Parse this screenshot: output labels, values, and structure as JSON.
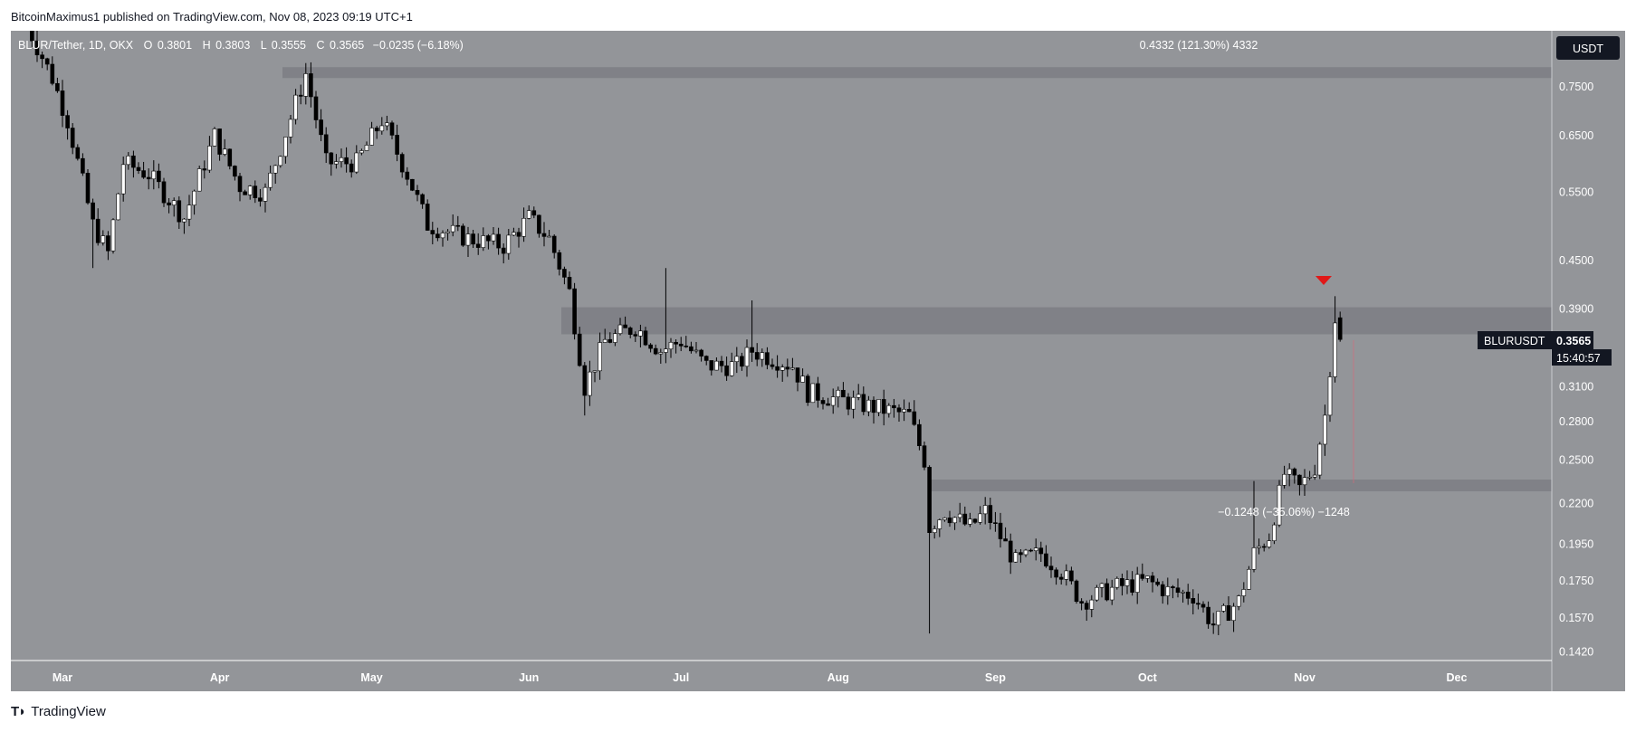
{
  "header": {
    "publish_text": "BitcoinMaximus1 published on TradingView.com, Nov 08, 2023 09:19 UTC+1"
  },
  "legend": {
    "symbol": "BLUR/Tether, 1D, OKX",
    "o_label": "O",
    "o_value": "0.3801",
    "h_label": "H",
    "h_value": "0.3803",
    "l_label": "L",
    "l_value": "0.3555",
    "c_label": "C",
    "c_value": "0.3565",
    "change": "−0.0235 (−6.18%)"
  },
  "currency_label": "USDT",
  "price_tag": {
    "symbol": "BLURUSDT",
    "price": "0.3565",
    "countdown": "15:40:57"
  },
  "measure_up": "0.4332 (121.30%) 4332",
  "measure_down": "−0.1248 (−35.06%) −1248",
  "footer": {
    "brand": "TradingView"
  },
  "colors": {
    "plot_bg": "#939599",
    "zone": "#7c7e84",
    "candle_up": "#ffffff",
    "candle_down": "#000000",
    "arrow": "#e01818",
    "price_tag_bg": "#131722",
    "currency_bg": "#131722"
  },
  "chart_data": {
    "type": "candlestick",
    "scale": "log",
    "y_ticks": [
      0.75,
      0.65,
      0.55,
      0.45,
      0.39,
      0.31,
      0.28,
      0.25,
      0.22,
      0.195,
      0.175,
      0.157,
      0.142
    ],
    "y_tick_labels": [
      "0.7500",
      "0.6500",
      "0.5500",
      "0.4500",
      "0.3900",
      "0.3100",
      "0.2800",
      "0.2500",
      "0.2200",
      "0.1950",
      "0.1750",
      "0.1570",
      "0.1420"
    ],
    "x_ticks": [
      "Mar",
      "Apr",
      "May",
      "Jun",
      "Jul",
      "Aug",
      "Sep",
      "Oct",
      "Nov",
      "Dec"
    ],
    "zones": [
      {
        "low": 0.77,
        "high": 0.795
      },
      {
        "low": 0.362,
        "high": 0.392
      },
      {
        "low": 0.228,
        "high": 0.236
      }
    ],
    "anchors": [
      {
        "x": "Feb 22",
        "y": 0.9
      },
      {
        "x": "Feb 27",
        "y": 0.77
      },
      {
        "x": "Mar 02",
        "y": 0.68
      },
      {
        "x": "Mar 07",
        "y": 0.5
      },
      {
        "x": "Mar 10",
        "y": 0.46
      },
      {
        "x": "Mar 13",
        "y": 0.6
      },
      {
        "x": "Mar 18",
        "y": 0.58
      },
      {
        "x": "Mar 25",
        "y": 0.51
      },
      {
        "x": "Mar 31",
        "y": 0.65
      },
      {
        "x": "Apr 05",
        "y": 0.56
      },
      {
        "x": "Apr 10",
        "y": 0.55
      },
      {
        "x": "Apr 18",
        "y": 0.78
      },
      {
        "x": "Apr 22",
        "y": 0.6
      },
      {
        "x": "Apr 28",
        "y": 0.6
      },
      {
        "x": "May 03",
        "y": 0.68
      },
      {
        "x": "May 08",
        "y": 0.58
      },
      {
        "x": "May 12",
        "y": 0.5
      },
      {
        "x": "May 20",
        "y": 0.48
      },
      {
        "x": "May 27",
        "y": 0.47
      },
      {
        "x": "Jun 01",
        "y": 0.51
      },
      {
        "x": "Jun 05",
        "y": 0.48
      },
      {
        "x": "Jun 09",
        "y": 0.41
      },
      {
        "x": "Jun 12",
        "y": 0.31
      },
      {
        "x": "Jun 16",
        "y": 0.355
      },
      {
        "x": "Jun 22",
        "y": 0.37
      },
      {
        "x": "Jun 27",
        "y": 0.345
      },
      {
        "x": "Jul 01",
        "y": 0.355
      },
      {
        "x": "Jul 06",
        "y": 0.33
      },
      {
        "x": "Jul 12",
        "y": 0.33
      },
      {
        "x": "Jul 15",
        "y": 0.345
      },
      {
        "x": "Jul 23",
        "y": 0.33
      },
      {
        "x": "Jul 26",
        "y": 0.305
      },
      {
        "x": "Aug 05",
        "y": 0.295
      },
      {
        "x": "Aug 15",
        "y": 0.285
      },
      {
        "x": "Aug 18",
        "y": 0.25
      },
      {
        "x": "Aug 19",
        "y": 0.205
      },
      {
        "x": "Aug 22",
        "y": 0.215
      },
      {
        "x": "Aug 27",
        "y": 0.205
      },
      {
        "x": "Aug 30",
        "y": 0.215
      },
      {
        "x": "Sep 05",
        "y": 0.185
      },
      {
        "x": "Sep 10",
        "y": 0.19
      },
      {
        "x": "Sep 14",
        "y": 0.18
      },
      {
        "x": "Sep 18",
        "y": 0.165
      },
      {
        "x": "Sep 25",
        "y": 0.172
      },
      {
        "x": "Oct 01",
        "y": 0.175
      },
      {
        "x": "Oct 05",
        "y": 0.17
      },
      {
        "x": "Oct 10",
        "y": 0.168
      },
      {
        "x": "Oct 14",
        "y": 0.154
      },
      {
        "x": "Oct 19",
        "y": 0.165
      },
      {
        "x": "Oct 22",
        "y": 0.19
      },
      {
        "x": "Oct 25",
        "y": 0.2
      },
      {
        "x": "Oct 28",
        "y": 0.24
      },
      {
        "x": "Oct 31",
        "y": 0.23
      },
      {
        "x": "Nov 03",
        "y": 0.245
      },
      {
        "x": "Nov 05",
        "y": 0.285
      },
      {
        "x": "Nov 07",
        "y": 0.38
      },
      {
        "x": "Nov 08",
        "y": 0.3565
      }
    ]
  }
}
